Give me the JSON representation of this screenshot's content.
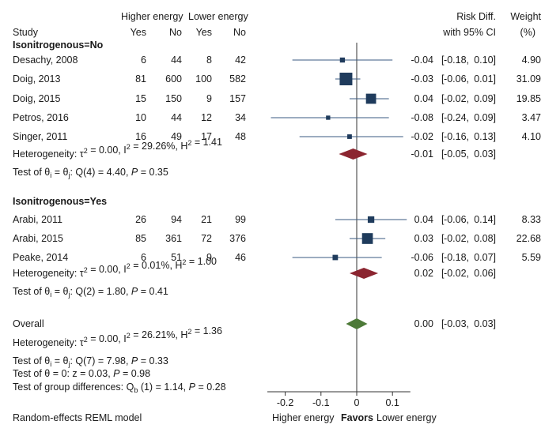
{
  "chart_data": {
    "type": "forest",
    "header": {
      "group_a": "Higher energy",
      "group_b": "Lower energy",
      "study": "Study",
      "yes": "Yes",
      "no": "No",
      "effect": "Risk Diff.",
      "ci": "with 95% CI",
      "weight": "Weight",
      "weight_unit": "(%)"
    },
    "xaxis": {
      "ticks": [
        -0.2,
        -0.1,
        0,
        0.1
      ],
      "tick_labels": [
        "-0.2",
        "-0.1",
        "0",
        "0.1"
      ],
      "range": [
        -0.25,
        0.15
      ],
      "label_left": "Higher energy",
      "label_mid": "Favors",
      "label_right": "Lower energy"
    },
    "footnote": "Random-effects REML model",
    "groups": [
      {
        "title": "Isonitrogenous=No",
        "studies": [
          {
            "name": "Desachy, 2008",
            "a_yes": "6",
            "a_no": "44",
            "b_yes": "8",
            "b_no": "42",
            "rd": -0.04,
            "lo": -0.18,
            "hi": 0.1,
            "rd_text": "-0.04",
            "lo_text": "-0.18,",
            "hi_text": "0.10]",
            "weight": 4.9,
            "weight_text": "4.90"
          },
          {
            "name": "Doig, 2013",
            "a_yes": "81",
            "a_no": "600",
            "b_yes": "100",
            "b_no": "582",
            "rd": -0.03,
            "lo": -0.06,
            "hi": 0.01,
            "rd_text": "-0.03",
            "lo_text": "-0.06,",
            "hi_text": "0.01]",
            "weight": 31.09,
            "weight_text": "31.09"
          },
          {
            "name": "Doig, 2015",
            "a_yes": "15",
            "a_no": "150",
            "b_yes": "9",
            "b_no": "157",
            "rd": 0.04,
            "lo": -0.02,
            "hi": 0.09,
            "rd_text": "0.04",
            "lo_text": "-0.02,",
            "hi_text": "0.09]",
            "weight": 19.85,
            "weight_text": "19.85"
          },
          {
            "name": "Petros, 2016",
            "a_yes": "10",
            "a_no": "44",
            "b_yes": "12",
            "b_no": "34",
            "rd": -0.08,
            "lo": -0.24,
            "hi": 0.09,
            "rd_text": "-0.08",
            "lo_text": "-0.24,",
            "hi_text": "0.09]",
            "weight": 3.47,
            "weight_text": "3.47"
          },
          {
            "name": "Singer, 2011",
            "a_yes": "16",
            "a_no": "49",
            "b_yes": "17",
            "b_no": "48",
            "rd": -0.02,
            "lo": -0.16,
            "hi": 0.13,
            "rd_text": "-0.02",
            "lo_text": "-0.16,",
            "hi_text": "0.13]",
            "weight": 4.1,
            "weight_text": "4.10"
          }
        ],
        "heterogeneity": {
          "tau2": "0.00",
          "i2": "29.26%",
          "h2": "1.41"
        },
        "pooled": {
          "rd": -0.01,
          "lo": -0.05,
          "hi": 0.03,
          "rd_text": "-0.01",
          "lo_text": "-0.05,",
          "hi_text": "0.03]",
          "color": "#8b2530"
        },
        "test": {
          "q_df": "4",
          "q": "4.40",
          "p": "0.35"
        }
      },
      {
        "title": "Isonitrogenous=Yes",
        "studies": [
          {
            "name": "Arabi, 2011",
            "a_yes": "26",
            "a_no": "94",
            "b_yes": "21",
            "b_no": "99",
            "rd": 0.04,
            "lo": -0.06,
            "hi": 0.14,
            "rd_text": "0.04",
            "lo_text": "-0.06,",
            "hi_text": "0.14]",
            "weight": 8.33,
            "weight_text": "8.33"
          },
          {
            "name": "Arabi, 2015",
            "a_yes": "85",
            "a_no": "361",
            "b_yes": "72",
            "b_no": "376",
            "rd": 0.03,
            "lo": -0.02,
            "hi": 0.08,
            "rd_text": "0.03",
            "lo_text": "-0.02,",
            "hi_text": "0.08]",
            "weight": 22.68,
            "weight_text": "22.68"
          },
          {
            "name": "Peake, 2014",
            "a_yes": "6",
            "a_no": "51",
            "b_yes": "9",
            "b_no": "46",
            "rd": -0.06,
            "lo": -0.18,
            "hi": 0.07,
            "rd_text": "-0.06",
            "lo_text": "-0.18,",
            "hi_text": "0.07]",
            "weight": 5.59,
            "weight_text": "5.59"
          }
        ],
        "heterogeneity": {
          "tau2": "0.00",
          "i2": "0.01%",
          "h2": "1.00"
        },
        "pooled": {
          "rd": 0.02,
          "lo": -0.02,
          "hi": 0.06,
          "rd_text": "0.02",
          "lo_text": "-0.02,",
          "hi_text": "0.06]",
          "color": "#8b2530"
        },
        "test": {
          "q_df": "2",
          "q": "1.80",
          "p": "0.41"
        }
      }
    ],
    "overall": {
      "label": "Overall",
      "rd": 0.0,
      "lo": -0.03,
      "hi": 0.03,
      "rd_text": "0.00",
      "lo_text": "-0.03,",
      "hi_text": "0.03]",
      "color": "#4d7a38",
      "heterogeneity": {
        "tau2": "0.00",
        "i2": "26.21%",
        "h2": "1.36"
      },
      "test_equal": {
        "q_df": "7",
        "q": "7.98",
        "p": "0.33"
      },
      "test_zero": {
        "z": "0.03",
        "p": "0.98"
      },
      "test_group": {
        "df": "1",
        "q": "1.14",
        "p": "0.28"
      }
    },
    "colors": {
      "marker": "#1f3b5c",
      "ci_line": "#3a5a80",
      "axis": "#333333"
    }
  }
}
